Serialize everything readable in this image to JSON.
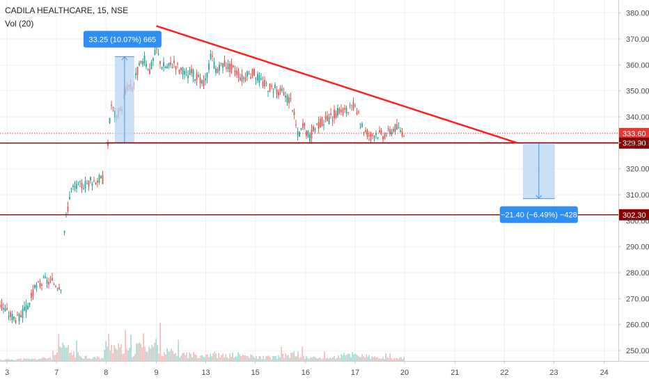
{
  "chart_data": {
    "type": "candlestick",
    "title": "CADILA HEALTHCARE, 15, NSE",
    "subtitle": "Vol (20)",
    "ylim": [
      246,
      385
    ],
    "y_ticks": [
      250,
      260,
      270,
      280,
      290,
      300,
      310,
      320,
      330,
      340,
      350,
      360,
      370,
      380
    ],
    "x_ticks": [
      {
        "label": "3",
        "x": 0.8
      },
      {
        "label": "7",
        "x": 6.4
      },
      {
        "label": "8",
        "x": 12.0
      },
      {
        "label": "9",
        "x": 17.7
      },
      {
        "label": "13",
        "x": 23.3
      },
      {
        "label": "15",
        "x": 28.9
      },
      {
        "label": "16",
        "x": 34.6
      },
      {
        "label": "17",
        "x": 40.2
      },
      {
        "label": "20",
        "x": 45.8
      },
      {
        "label": "21",
        "x": 51.5
      },
      {
        "label": "22",
        "x": 57.1
      },
      {
        "label": "23",
        "x": 62.7
      },
      {
        "label": "24",
        "x": 68.4
      }
    ],
    "xlim": [
      0,
      70
    ],
    "price_path": [
      [
        0,
        268
      ],
      [
        1,
        264
      ],
      [
        2,
        262
      ],
      [
        3,
        266
      ],
      [
        4,
        274
      ],
      [
        5,
        277
      ],
      [
        6,
        276
      ],
      [
        7,
        275
      ],
      [
        7.3,
        297
      ],
      [
        8,
        312
      ],
      [
        8.7,
        313
      ],
      [
        9.5,
        314
      ],
      [
        10.2,
        315
      ],
      [
        11,
        316
      ],
      [
        11.7,
        316
      ],
      [
        12.2,
        330
      ],
      [
        12.6,
        345
      ],
      [
        13.2,
        339
      ],
      [
        13.8,
        344
      ],
      [
        14.4,
        352
      ],
      [
        15,
        351
      ],
      [
        15.6,
        358
      ],
      [
        16.3,
        362
      ],
      [
        17,
        358
      ],
      [
        17.7,
        366
      ],
      [
        18.3,
        360
      ],
      [
        19,
        359
      ],
      [
        19.7,
        361
      ],
      [
        20.4,
        358
      ],
      [
        21.1,
        356
      ],
      [
        21.8,
        357
      ],
      [
        22.5,
        354
      ],
      [
        23.2,
        352
      ],
      [
        23.9,
        364
      ],
      [
        24.6,
        357
      ],
      [
        25.3,
        361
      ],
      [
        26,
        359
      ],
      [
        26.7,
        358
      ],
      [
        27.4,
        355
      ],
      [
        28.1,
        356
      ],
      [
        28.8,
        357
      ],
      [
        29.5,
        354
      ],
      [
        30.2,
        352
      ],
      [
        30.9,
        351
      ],
      [
        31.6,
        350
      ],
      [
        32.3,
        348
      ],
      [
        33,
        346
      ],
      [
        33.7,
        333
      ],
      [
        34.4,
        336
      ],
      [
        35.1,
        332
      ],
      [
        35.8,
        337
      ],
      [
        36.5,
        338
      ],
      [
        37.2,
        339
      ],
      [
        37.9,
        341
      ],
      [
        38.6,
        343
      ],
      [
        39.3,
        342
      ],
      [
        40,
        344
      ],
      [
        40.6,
        340
      ],
      [
        41.2,
        335
      ],
      [
        41.9,
        333
      ],
      [
        42.6,
        334
      ],
      [
        43.3,
        333
      ],
      [
        44,
        334
      ],
      [
        44.7,
        336
      ],
      [
        45.3,
        335
      ],
      [
        45.8,
        334
      ]
    ],
    "volume_path": [
      [
        0,
        2
      ],
      [
        2,
        3
      ],
      [
        4,
        3
      ],
      [
        6,
        6
      ],
      [
        7.3,
        25
      ],
      [
        8,
        14
      ],
      [
        10,
        6
      ],
      [
        11.7,
        5
      ],
      [
        12.2,
        40
      ],
      [
        12.8,
        22
      ],
      [
        14,
        18
      ],
      [
        15,
        14
      ],
      [
        16.3,
        32
      ],
      [
        17,
        22
      ],
      [
        17.7,
        28
      ],
      [
        18.5,
        16
      ],
      [
        20,
        12
      ],
      [
        22,
        10
      ],
      [
        24,
        12
      ],
      [
        25,
        8
      ],
      [
        27,
        10
      ],
      [
        29,
        6
      ],
      [
        31,
        6
      ],
      [
        33.7,
        12
      ],
      [
        34.5,
        6
      ],
      [
        36,
        5
      ],
      [
        38,
        6
      ],
      [
        40,
        12
      ],
      [
        42,
        6
      ],
      [
        44,
        4
      ],
      [
        45.8,
        5
      ]
    ],
    "volume_ylim": [
      0,
      130
    ],
    "resistance_line": {
      "x1": 17.7,
      "y1": 375,
      "x2": 58.5,
      "y2": 330
    },
    "support_line": {
      "x1": 12.0,
      "y1": 330
    },
    "horizontal_levels": [
      {
        "value": 329.9,
        "label": "329.90",
        "color": "#8b0000"
      },
      {
        "value": 302.3,
        "label": "302.30",
        "color": "#8b0000"
      }
    ],
    "last_price": {
      "value": 333.6,
      "label": "333.60",
      "color": "#e53935"
    },
    "measure_up": {
      "x1": 13.0,
      "x2": 15.2,
      "y1": 329.9,
      "y2": 363.2,
      "label": "33.25 (10.07%) 665"
    },
    "measure_down": {
      "x1": 59.2,
      "x2": 62.8,
      "y1": 329.9,
      "y2": 308.5,
      "label": "−21.40 (−6.49%) −428"
    },
    "colors": {
      "up": "#26a69a",
      "down": "#ef5350",
      "volume_up": "#7ed0c6",
      "volume_down": "#f4a3a1",
      "trendline": "#ff1f1f",
      "measure_fill": "#b7d5f4",
      "measure_line": "#4a90e2",
      "label_bg": "#2f8ff0"
    },
    "grid": true
  }
}
